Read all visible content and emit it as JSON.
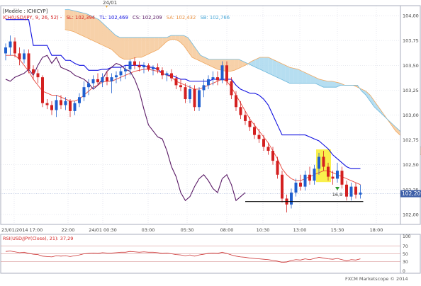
{
  "colors": {
    "background": "#ffffff",
    "grid": "#d9dde8",
    "axis_text": "#444444",
    "kumo_bull": "#f6c99a",
    "kumo_bear": "#a9d8ef",
    "ssa": "#f0a860",
    "ssb": "#6bb7dc",
    "kijun": "#1010e0",
    "tenkan": "#e8463c",
    "chikou": "#5a1a66",
    "candle_up": "#1f5fcf",
    "candle_down": "#d42020",
    "highlight": "#f8ee3a",
    "support": "#000000",
    "current_price_tag": "#3d5fa8",
    "rsi_line": "#cc3333",
    "rsi_level": "#d08080"
  },
  "header": {
    "top_date_label": "24/01",
    "model_label": "[Modèle : ICHICYP]",
    "ichimoku_name": "ICH(USD/JPY, 9, 26, 52)  -",
    "sl_text": "SL: 102,394",
    "tl_text": "TL: 102,469",
    "cs_text": "CS: 102,209",
    "sa_text": "SA: 102,432",
    "sb_text": "SB: 102,766"
  },
  "current_price": "102,209",
  "annotation_label": "16,9",
  "rsi_label": "RSI(USD/JPY(Close), 21): 37,29",
  "watermark": "FXCM Marketscope © 2014",
  "chart_data": [
    {
      "type": "line",
      "title": "USD/JPY",
      "ylim": [
        101.9,
        104.1
      ],
      "y_ticks": [
        "104,00",
        "103,75",
        "103,50",
        "103,25",
        "103,00",
        "102,75",
        "102,50",
        "102,25",
        "102,00"
      ],
      "y_tick_values": [
        104.0,
        103.75,
        103.5,
        103.25,
        103.0,
        102.75,
        102.5,
        102.25,
        102.0
      ],
      "x_ticks": [
        "23/01/2014 17:00",
        "22:00",
        "24/01 00:30",
        "03:00",
        "05:30",
        "08:00",
        "10:30",
        "13:00",
        "15:30",
        "18:00"
      ],
      "support_level": 102.13,
      "candles": [
        {
          "o": 103.62,
          "h": 103.72,
          "l": 103.55,
          "c": 103.68
        },
        {
          "o": 103.68,
          "h": 103.8,
          "l": 103.6,
          "c": 103.74
        },
        {
          "o": 103.74,
          "h": 103.78,
          "l": 103.58,
          "c": 103.62
        },
        {
          "o": 103.62,
          "h": 103.68,
          "l": 103.5,
          "c": 103.56
        },
        {
          "o": 103.56,
          "h": 103.66,
          "l": 103.52,
          "c": 103.62
        },
        {
          "o": 103.62,
          "h": 103.66,
          "l": 103.42,
          "c": 103.46
        },
        {
          "o": 103.46,
          "h": 103.5,
          "l": 103.36,
          "c": 103.42
        },
        {
          "o": 103.42,
          "h": 103.46,
          "l": 103.32,
          "c": 103.38
        },
        {
          "o": 103.38,
          "h": 103.4,
          "l": 103.08,
          "c": 103.12
        },
        {
          "o": 103.12,
          "h": 103.16,
          "l": 103.06,
          "c": 103.1
        },
        {
          "o": 103.1,
          "h": 103.14,
          "l": 103.0,
          "c": 103.05
        },
        {
          "o": 103.05,
          "h": 103.2,
          "l": 102.98,
          "c": 103.15
        },
        {
          "o": 103.15,
          "h": 103.2,
          "l": 103.06,
          "c": 103.1
        },
        {
          "o": 103.1,
          "h": 103.18,
          "l": 103.05,
          "c": 103.14
        },
        {
          "o": 103.14,
          "h": 103.16,
          "l": 102.98,
          "c": 103.04
        },
        {
          "o": 103.04,
          "h": 103.14,
          "l": 103.0,
          "c": 103.12
        },
        {
          "o": 103.12,
          "h": 103.22,
          "l": 103.08,
          "c": 103.18
        },
        {
          "o": 103.18,
          "h": 103.34,
          "l": 103.14,
          "c": 103.28
        },
        {
          "o": 103.28,
          "h": 103.36,
          "l": 103.2,
          "c": 103.32
        },
        {
          "o": 103.32,
          "h": 103.4,
          "l": 103.26,
          "c": 103.36
        },
        {
          "o": 103.36,
          "h": 103.42,
          "l": 103.3,
          "c": 103.33
        },
        {
          "o": 103.33,
          "h": 103.42,
          "l": 103.28,
          "c": 103.38
        },
        {
          "o": 103.38,
          "h": 103.44,
          "l": 103.3,
          "c": 103.34
        },
        {
          "o": 103.34,
          "h": 103.42,
          "l": 103.22,
          "c": 103.38
        },
        {
          "o": 103.38,
          "h": 103.44,
          "l": 103.32,
          "c": 103.4
        },
        {
          "o": 103.4,
          "h": 103.48,
          "l": 103.34,
          "c": 103.44
        },
        {
          "o": 103.44,
          "h": 103.5,
          "l": 103.36,
          "c": 103.46
        },
        {
          "o": 103.46,
          "h": 103.56,
          "l": 103.4,
          "c": 103.54
        },
        {
          "o": 103.54,
          "h": 103.58,
          "l": 103.46,
          "c": 103.5
        },
        {
          "o": 103.5,
          "h": 103.54,
          "l": 103.44,
          "c": 103.48
        },
        {
          "o": 103.48,
          "h": 103.53,
          "l": 103.42,
          "c": 103.5
        },
        {
          "o": 103.5,
          "h": 103.52,
          "l": 103.44,
          "c": 103.46
        },
        {
          "o": 103.46,
          "h": 103.5,
          "l": 103.4,
          "c": 103.48
        },
        {
          "o": 103.48,
          "h": 103.52,
          "l": 103.42,
          "c": 103.45
        },
        {
          "o": 103.45,
          "h": 103.48,
          "l": 103.36,
          "c": 103.4
        },
        {
          "o": 103.4,
          "h": 103.44,
          "l": 103.34,
          "c": 103.42
        },
        {
          "o": 103.42,
          "h": 103.46,
          "l": 103.34,
          "c": 103.37
        },
        {
          "o": 103.37,
          "h": 103.4,
          "l": 103.26,
          "c": 103.3
        },
        {
          "o": 103.3,
          "h": 103.36,
          "l": 103.24,
          "c": 103.28
        },
        {
          "o": 103.28,
          "h": 103.32,
          "l": 103.12,
          "c": 103.16
        },
        {
          "o": 103.16,
          "h": 103.3,
          "l": 103.12,
          "c": 103.26
        },
        {
          "o": 103.26,
          "h": 103.3,
          "l": 103.04,
          "c": 103.08
        },
        {
          "o": 103.08,
          "h": 103.28,
          "l": 103.04,
          "c": 103.25
        },
        {
          "o": 103.25,
          "h": 103.36,
          "l": 103.18,
          "c": 103.3
        },
        {
          "o": 103.3,
          "h": 103.4,
          "l": 103.26,
          "c": 103.36
        },
        {
          "o": 103.36,
          "h": 103.44,
          "l": 103.3,
          "c": 103.38
        },
        {
          "o": 103.38,
          "h": 103.44,
          "l": 103.3,
          "c": 103.35
        },
        {
          "o": 103.35,
          "h": 103.54,
          "l": 103.32,
          "c": 103.5
        },
        {
          "o": 103.5,
          "h": 103.54,
          "l": 103.3,
          "c": 103.34
        },
        {
          "o": 103.34,
          "h": 103.38,
          "l": 103.16,
          "c": 103.2
        },
        {
          "o": 103.2,
          "h": 103.24,
          "l": 103.04,
          "c": 103.08
        },
        {
          "o": 103.08,
          "h": 103.14,
          "l": 102.96,
          "c": 103.0
        },
        {
          "o": 103.0,
          "h": 103.04,
          "l": 102.9,
          "c": 102.94
        },
        {
          "o": 102.94,
          "h": 102.98,
          "l": 102.84,
          "c": 102.88
        },
        {
          "o": 102.88,
          "h": 102.92,
          "l": 102.76,
          "c": 102.8
        },
        {
          "o": 102.8,
          "h": 102.86,
          "l": 102.72,
          "c": 102.76
        },
        {
          "o": 102.76,
          "h": 102.8,
          "l": 102.64,
          "c": 102.68
        },
        {
          "o": 102.68,
          "h": 102.72,
          "l": 102.6,
          "c": 102.64
        },
        {
          "o": 102.64,
          "h": 102.68,
          "l": 102.5,
          "c": 102.54
        },
        {
          "o": 102.54,
          "h": 102.58,
          "l": 102.36,
          "c": 102.4
        },
        {
          "o": 102.4,
          "h": 102.44,
          "l": 102.12,
          "c": 102.16
        },
        {
          "o": 102.16,
          "h": 102.2,
          "l": 102.02,
          "c": 102.1
        },
        {
          "o": 102.1,
          "h": 102.26,
          "l": 102.06,
          "c": 102.22
        },
        {
          "o": 102.22,
          "h": 102.36,
          "l": 102.18,
          "c": 102.32
        },
        {
          "o": 102.32,
          "h": 102.4,
          "l": 102.24,
          "c": 102.28
        },
        {
          "o": 102.28,
          "h": 102.44,
          "l": 102.24,
          "c": 102.4
        },
        {
          "o": 102.4,
          "h": 102.48,
          "l": 102.3,
          "c": 102.34
        },
        {
          "o": 102.34,
          "h": 102.5,
          "l": 102.3,
          "c": 102.46
        },
        {
          "o": 102.46,
          "h": 102.62,
          "l": 102.4,
          "c": 102.58
        },
        {
          "o": 102.58,
          "h": 102.64,
          "l": 102.44,
          "c": 102.48
        },
        {
          "o": 102.48,
          "h": 102.52,
          "l": 102.34,
          "c": 102.38
        },
        {
          "o": 102.38,
          "h": 102.44,
          "l": 102.3,
          "c": 102.36
        },
        {
          "o": 102.36,
          "h": 102.52,
          "l": 102.32,
          "c": 102.44
        },
        {
          "o": 102.44,
          "h": 102.48,
          "l": 102.26,
          "c": 102.3
        },
        {
          "o": 102.3,
          "h": 102.34,
          "l": 102.14,
          "c": 102.18
        },
        {
          "o": 102.18,
          "h": 102.32,
          "l": 102.14,
          "c": 102.28
        },
        {
          "o": 102.28,
          "h": 102.32,
          "l": 102.16,
          "c": 102.2
        },
        {
          "o": 102.2,
          "h": 102.3,
          "l": 102.16,
          "c": 102.22
        }
      ],
      "highlight_bars": [
        68,
        70
      ],
      "annotation_bar": 72,
      "tenkan": [
        103.6,
        103.6,
        103.6,
        103.56,
        103.5,
        103.44,
        103.36,
        103.3,
        103.24,
        103.22,
        103.2,
        103.2,
        103.18,
        103.16,
        103.14,
        103.14,
        103.16,
        103.2,
        103.24,
        103.28,
        103.3,
        103.33,
        103.34,
        103.34,
        103.36,
        103.38,
        103.4,
        103.42,
        103.44,
        103.45,
        103.46,
        103.46,
        103.45,
        103.44,
        103.42,
        103.4,
        103.38,
        103.34,
        103.32,
        103.3,
        103.28,
        103.26,
        103.26,
        103.28,
        103.3,
        103.32,
        103.34,
        103.36,
        103.34,
        103.28,
        103.2,
        103.12,
        103.04,
        102.96,
        102.9,
        102.84,
        102.78,
        102.72,
        102.64,
        102.56,
        102.46,
        102.4,
        102.36,
        102.34,
        102.34,
        102.36,
        102.38,
        102.4,
        102.42,
        102.44,
        102.44,
        102.42,
        102.4,
        102.38,
        102.36,
        102.34,
        102.32,
        102.3
      ],
      "kijun": [
        103.96,
        103.96,
        103.96,
        103.96,
        103.96,
        103.96,
        103.7,
        103.7,
        103.7,
        103.7,
        103.6,
        103.6,
        103.6,
        103.55,
        103.55,
        103.52,
        103.5,
        103.5,
        103.45,
        103.45,
        103.45,
        103.46,
        103.46,
        103.48,
        103.48,
        103.48,
        103.5,
        103.5,
        103.5,
        103.5,
        103.5,
        103.48,
        103.48,
        103.46,
        103.42,
        103.4,
        103.4,
        103.38,
        103.36,
        103.36,
        103.34,
        103.34,
        103.34,
        103.34,
        103.34,
        103.36,
        103.36,
        103.36,
        103.36,
        103.36,
        103.3,
        103.26,
        103.24,
        103.22,
        103.22,
        103.2,
        103.16,
        103.1,
        103.0,
        102.9,
        102.8,
        102.8,
        102.8,
        102.8,
        102.8,
        102.8,
        102.78,
        102.76,
        102.74,
        102.7,
        102.66,
        102.6,
        102.56,
        102.52,
        102.48,
        102.46,
        102.46,
        102.46
      ],
      "ssa": [
        103.86,
        103.85,
        103.84,
        103.82,
        103.8,
        103.78,
        103.76,
        103.74,
        103.72,
        103.7,
        103.68,
        103.66,
        103.62,
        103.58,
        103.56,
        103.56,
        103.57,
        103.58,
        103.58,
        103.6,
        103.62,
        103.64,
        103.66,
        103.7,
        103.74,
        103.76,
        103.76,
        103.74,
        103.7,
        103.64,
        103.58,
        103.56,
        103.54,
        103.52,
        103.5,
        103.48,
        103.46,
        103.45,
        103.44,
        103.44,
        103.45,
        103.47,
        103.49,
        103.51,
        103.54,
        103.56,
        103.58,
        103.58,
        103.58,
        103.56,
        103.54,
        103.52,
        103.5,
        103.48,
        103.47,
        103.46,
        103.44,
        103.42,
        103.4,
        103.38,
        103.36,
        103.35,
        103.34,
        103.34,
        103.33,
        103.32,
        103.3,
        103.3,
        103.3,
        103.28,
        103.26,
        103.24,
        103.2,
        103.14,
        103.08,
        103.02,
        102.96,
        102.9,
        102.84,
        102.8,
        102.76,
        102.72,
        102.68,
        102.64,
        102.6
      ],
      "ssb": [
        104.06,
        104.06,
        104.05,
        104.04,
        104.03,
        104.02,
        104.0,
        103.98,
        103.96,
        103.92,
        103.88,
        103.84,
        103.8,
        103.78,
        103.78,
        103.78,
        103.78,
        103.78,
        103.78,
        103.78,
        103.78,
        103.78,
        103.78,
        103.78,
        103.78,
        103.8,
        103.8,
        103.8,
        103.8,
        103.78,
        103.72,
        103.66,
        103.6,
        103.58,
        103.56,
        103.56,
        103.56,
        103.56,
        103.56,
        103.56,
        103.56,
        103.56,
        103.54,
        103.52,
        103.5,
        103.48,
        103.46,
        103.44,
        103.42,
        103.4,
        103.38,
        103.36,
        103.34,
        103.32,
        103.32,
        103.32,
        103.32,
        103.32,
        103.32,
        103.32,
        103.3,
        103.28,
        103.28,
        103.28,
        103.28,
        103.3,
        103.3,
        103.3,
        103.3,
        103.3,
        103.24,
        103.2,
        103.14,
        103.08,
        103.04,
        103.0,
        102.96,
        102.92,
        102.88,
        102.84,
        102.8,
        102.76,
        102.72,
        102.7,
        102.68
      ],
      "chikou": [
        103.36,
        103.34,
        103.38,
        103.4,
        103.42,
        103.46,
        103.4,
        103.5,
        103.58,
        103.6,
        103.52,
        103.58,
        103.48,
        103.46,
        103.44,
        103.4,
        103.38,
        103.36,
        103.32,
        103.26,
        103.3,
        103.36,
        103.44,
        103.48,
        103.52,
        103.5,
        103.46,
        103.44,
        103.36,
        103.24,
        103.06,
        102.9,
        102.84,
        102.78,
        102.76,
        102.64,
        102.48,
        102.38,
        102.22,
        102.14,
        102.18,
        102.28,
        102.36,
        102.4,
        102.34,
        102.26,
        102.22,
        102.36,
        102.4,
        102.3,
        102.14,
        102.18,
        102.22
      ]
    },
    {
      "type": "line",
      "title": "RSI(USD/JPY(Close), 21)",
      "ylim": [
        0,
        100
      ],
      "levels": [
        100,
        70,
        50,
        30,
        0
      ],
      "values": [
        56,
        57,
        55,
        53,
        54,
        51,
        49,
        48,
        44,
        43,
        42,
        45,
        44,
        45,
        43,
        45,
        47,
        50,
        51,
        52,
        51,
        53,
        52,
        52,
        53,
        54,
        54,
        56,
        55,
        54,
        55,
        54,
        54,
        53,
        51,
        52,
        50,
        48,
        47,
        45,
        47,
        44,
        47,
        49,
        51,
        52,
        51,
        54,
        51,
        47,
        44,
        42,
        41,
        39,
        38,
        37,
        36,
        35,
        33,
        31,
        28,
        29,
        33,
        35,
        34,
        37,
        35,
        38,
        41,
        39,
        37,
        36,
        38,
        35,
        32,
        35,
        34,
        37
      ]
    }
  ]
}
